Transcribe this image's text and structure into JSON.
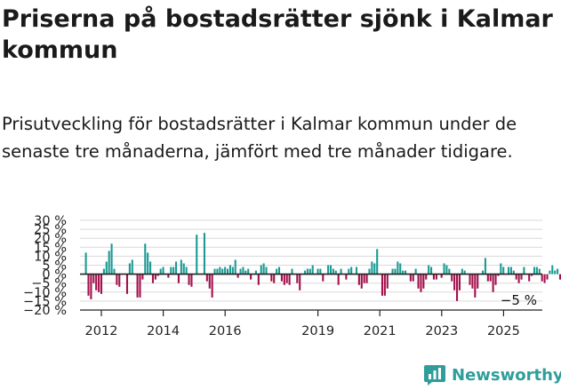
{
  "title": "Priserna på bostadsrätter sjönk i Kalmar kommun",
  "subtitle": "Prisutveckling för bostadsrätter i Kalmar kommun under de senaste tre månaderna, jämfört med tre månader tidigare.",
  "brand": "Newsworthy",
  "colors": {
    "positive": "#1b9a93",
    "negative": "#a3104d",
    "grid": "#d9d9d9",
    "axis": "#222222",
    "brand": "#2f9e9b"
  },
  "chart_data": {
    "type": "bar",
    "title": "",
    "xlabel": "",
    "ylabel": "",
    "ylim": [
      -20,
      30
    ],
    "yticks": [
      30,
      25,
      20,
      15,
      10,
      5,
      0,
      -5,
      -10,
      -15,
      -20
    ],
    "ytick_labels": [
      "30 %",
      "25 %",
      "20 %",
      "15 %",
      "10 %",
      "5 %",
      "0 %",
      "−5 %",
      "−10 %",
      "−15 %",
      "−20 %"
    ],
    "xticks": [
      2012,
      2014,
      2016,
      2019,
      2021,
      2023,
      2025
    ],
    "x_start": 2011.5,
    "x_end": 2025.75,
    "step": 0.0833,
    "values": [
      12,
      -12,
      -14,
      -5,
      -9,
      -10,
      -11,
      3,
      7,
      13,
      17,
      3,
      -6,
      -7,
      0,
      0,
      -11,
      6,
      8,
      0,
      -13,
      -13,
      -3,
      17,
      12,
      7,
      -5,
      -3,
      -1,
      3,
      4,
      0,
      -2,
      4,
      4,
      7,
      -5,
      8,
      6,
      4,
      -6,
      -7,
      0,
      22,
      0,
      0,
      23,
      -4,
      -8,
      -13,
      3,
      3,
      4,
      3,
      4,
      3,
      5,
      4,
      8,
      -2,
      3,
      4,
      2,
      3,
      -3,
      0,
      2,
      -6,
      5,
      6,
      4,
      0,
      -4,
      -5,
      3,
      4,
      -4,
      -6,
      -5,
      -6,
      3,
      0,
      -5,
      -9,
      0,
      2,
      3,
      3,
      5,
      0,
      3,
      3,
      -4,
      0,
      5,
      5,
      3,
      2,
      -6,
      3,
      0,
      -3,
      3,
      4,
      0,
      4,
      -6,
      -8,
      -5,
      -5,
      3,
      7,
      6,
      14,
      0,
      -12,
      -12,
      -8,
      0,
      3,
      3,
      7,
      6,
      2,
      2,
      0,
      -4,
      -4,
      3,
      -8,
      -10,
      -8,
      -3,
      5,
      4,
      -3,
      -3,
      0,
      -2,
      6,
      5,
      3,
      -4,
      -9,
      -15,
      -9,
      3,
      2,
      0,
      -6,
      -8,
      -13,
      -8,
      0,
      2,
      9,
      -4,
      -4,
      -10,
      -6,
      -1,
      6,
      4,
      0,
      4,
      4,
      2,
      -3,
      -5,
      -3,
      4,
      0,
      -4,
      -1,
      4,
      4,
      3,
      -4,
      -5,
      -3,
      2,
      5,
      2,
      3,
      -3,
      -6,
      4,
      3,
      -5
    ],
    "last_label": "−5 %"
  }
}
